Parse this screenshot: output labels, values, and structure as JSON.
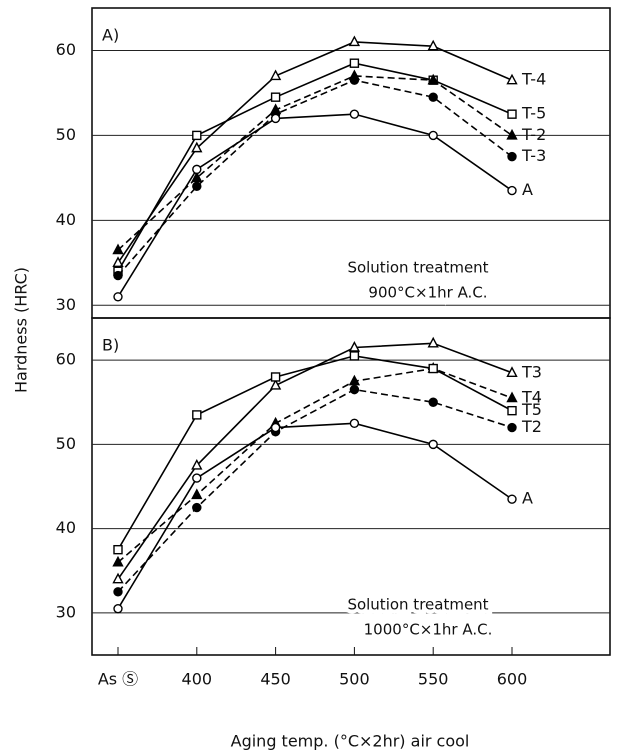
{
  "chart_data": [
    {
      "type": "line",
      "panel_label": "A)",
      "ylabel": "Hardness (HRC)",
      "annotation": [
        "Solution treatment",
        "900°C×1hr A.C."
      ],
      "ylim": [
        28.5,
        65
      ],
      "yticks": [
        30,
        40,
        50,
        60
      ],
      "grid": true,
      "series": [
        {
          "name": "T-4",
          "color": "#000000",
          "marker": "triangle",
          "filled": false,
          "dashed": false,
          "values": [
            35,
            48.5,
            57,
            61,
            60.5,
            56.5
          ]
        },
        {
          "name": "T-5",
          "color": "#000000",
          "marker": "square",
          "filled": false,
          "dashed": false,
          "values": [
            34,
            50,
            54.5,
            58.5,
            56.5,
            52.5
          ]
        },
        {
          "name": "T-2",
          "color": "#000000",
          "marker": "triangle",
          "filled": true,
          "dashed": true,
          "values": [
            36.5,
            45,
            53,
            57,
            56.5,
            50
          ]
        },
        {
          "name": "T-3",
          "color": "#000000",
          "marker": "circle",
          "filled": true,
          "dashed": true,
          "values": [
            33.5,
            44,
            52.5,
            56.5,
            54.5,
            47.5
          ]
        },
        {
          "name": "A",
          "color": "#000000",
          "marker": "circle",
          "filled": false,
          "dashed": false,
          "values": [
            31,
            46,
            52,
            52.5,
            50,
            43.5
          ]
        }
      ]
    },
    {
      "type": "line",
      "panel_label": "B)",
      "xlabel": "Aging temp. (°C×2hr)  air cool",
      "categories": [
        "As Ⓢ",
        "400",
        "450",
        "500",
        "550",
        "600"
      ],
      "annotation": [
        "Solution treatment",
        "1000°C×1hr A.C."
      ],
      "ylim": [
        25,
        65
      ],
      "yticks": [
        30,
        40,
        50,
        60
      ],
      "grid": true,
      "series": [
        {
          "name": "T3",
          "color": "#000000",
          "marker": "triangle",
          "filled": false,
          "dashed": false,
          "values": [
            34,
            47.5,
            57,
            61.5,
            62,
            58.5
          ]
        },
        {
          "name": "T4",
          "color": "#000000",
          "marker": "triangle",
          "filled": true,
          "dashed": true,
          "values": [
            36,
            44,
            52.5,
            57.5,
            59,
            55.5
          ]
        },
        {
          "name": "T5",
          "color": "#000000",
          "marker": "square",
          "filled": false,
          "dashed": false,
          "values": [
            37.5,
            53.5,
            58,
            60.5,
            59,
            54
          ]
        },
        {
          "name": "T2",
          "color": "#000000",
          "marker": "circle",
          "filled": true,
          "dashed": true,
          "values": [
            32.5,
            42.5,
            51.5,
            56.5,
            55,
            52
          ]
        },
        {
          "name": "A",
          "color": "#000000",
          "marker": "circle",
          "filled": false,
          "dashed": false,
          "values": [
            30.5,
            46,
            52,
            52.5,
            50,
            43.5
          ]
        }
      ]
    }
  ]
}
